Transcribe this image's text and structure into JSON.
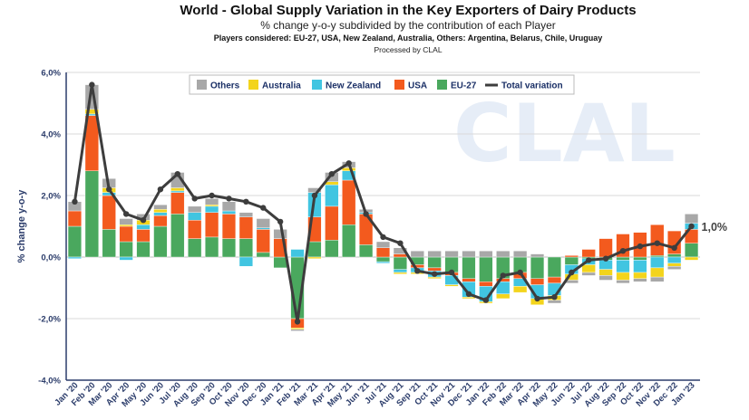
{
  "title": "World - Global Supply Variation in the Key Exporters of Dairy Products",
  "subtitle": "% change y-o-y subdivided by the contribution of each Player",
  "players": "Players considered: EU-27, USA, New Zealand, Australia, Others: Argentina, Belarus, Chile, Uruguay",
  "processed": "Processed by CLAL",
  "watermark": "CLAL",
  "chart_data": {
    "type": "bar",
    "stacked": true,
    "ylabel": "% change y-o-y",
    "ylim": [
      -4,
      6
    ],
    "yticks": [
      "-4,0%",
      "-2,0%",
      "0,0%",
      "2,0%",
      "4,0%",
      "6,0%"
    ],
    "yticks_values": [
      -4,
      -2,
      0,
      2,
      4,
      6
    ],
    "grid": "horizontal",
    "legend_position": "top",
    "end_label": "1,0%",
    "categories": [
      "Jan '20",
      "Feb '20",
      "Mar '20",
      "Apr '20",
      "May '20",
      "Jun '20",
      "Jul '20",
      "Aug '20",
      "Sep '20",
      "Oct '20",
      "Nov '20",
      "Dec '20",
      "Jan '21",
      "Feb '21",
      "Mar '21",
      "Apr '21",
      "May '21",
      "Jun '21",
      "Jul '21",
      "Aug '21",
      "Sep '21",
      "Oct '21",
      "Nov '21",
      "Dec '21",
      "Jan '22",
      "Feb '22",
      "Mar '22",
      "Apr '22",
      "May '22",
      "Jun '22",
      "Jul '22",
      "Aug '22",
      "Sep '22",
      "Oct '22",
      "Nov '22",
      "Dec '22",
      "Jan '23"
    ],
    "series": [
      {
        "name": "Others",
        "color": "#a8a8a8",
        "values": [
          0.3,
          0.8,
          0.3,
          0.2,
          0.2,
          0.15,
          0.5,
          0.2,
          0.2,
          0.3,
          0.15,
          0.3,
          0.3,
          -0.05,
          0.15,
          0.3,
          0.2,
          0.1,
          0.2,
          0.2,
          0.2,
          0.2,
          0.2,
          0.2,
          0.2,
          0.2,
          0.2,
          0.1,
          -0.1,
          -0.1,
          -0.1,
          -0.15,
          -0.1,
          -0.1,
          -0.15,
          -0.1,
          0.3
        ]
      },
      {
        "name": "Australia",
        "color": "#f3d41c",
        "values": [
          0.0,
          0.15,
          0.15,
          0.05,
          0.15,
          0.1,
          0.1,
          0.0,
          0.05,
          0.0,
          0.0,
          0.0,
          0.0,
          -0.05,
          -0.05,
          0.1,
          0.1,
          0.0,
          0.0,
          -0.05,
          -0.05,
          -0.05,
          -0.05,
          -0.05,
          -0.05,
          -0.15,
          -0.2,
          -0.2,
          -0.15,
          -0.2,
          -0.25,
          -0.2,
          -0.25,
          -0.2,
          -0.3,
          -0.1,
          -0.1
        ]
      },
      {
        "name": "New Zealand",
        "color": "#41c5e1",
        "values": [
          -0.05,
          0.05,
          0.1,
          -0.1,
          0.15,
          0.1,
          0.05,
          0.25,
          0.2,
          0.1,
          -0.3,
          0.05,
          0.0,
          0.25,
          0.8,
          0.7,
          0.3,
          0.05,
          -0.05,
          -0.1,
          -0.15,
          -0.2,
          -0.3,
          -0.5,
          -0.5,
          -0.4,
          -0.25,
          -0.45,
          -0.4,
          -0.3,
          -0.2,
          -0.3,
          -0.4,
          -0.4,
          -0.35,
          -0.2,
          0.2
        ]
      },
      {
        "name": "USA",
        "color": "#f35a1e",
        "values": [
          0.5,
          1.8,
          1.1,
          0.5,
          0.4,
          0.35,
          0.7,
          0.6,
          0.8,
          0.8,
          0.7,
          0.75,
          0.6,
          -0.3,
          0.8,
          1.1,
          1.45,
          1.0,
          0.3,
          0.1,
          -0.1,
          -0.1,
          -0.1,
          -0.1,
          -0.15,
          -0.1,
          -0.2,
          -0.2,
          -0.2,
          0.05,
          0.25,
          0.6,
          0.75,
          0.8,
          1.0,
          0.75,
          0.45
        ]
      },
      {
        "name": "EU-27",
        "color": "#4aa85e",
        "values": [
          1.0,
          2.8,
          0.9,
          0.5,
          0.5,
          1.0,
          1.4,
          0.6,
          0.65,
          0.6,
          0.6,
          0.15,
          -0.35,
          -2.0,
          0.5,
          0.55,
          1.05,
          0.4,
          -0.15,
          -0.4,
          -0.25,
          -0.35,
          -0.5,
          -0.7,
          -0.8,
          -0.7,
          -0.5,
          -0.7,
          -0.65,
          -0.25,
          -0.05,
          -0.1,
          -0.1,
          -0.1,
          0.05,
          0.1,
          0.45
        ]
      },
      {
        "name": "Total variation",
        "color": "#3d3d3d",
        "type": "line",
        "values": [
          1.8,
          5.6,
          2.2,
          1.4,
          1.2,
          2.2,
          2.7,
          1.9,
          2.0,
          1.9,
          1.8,
          1.6,
          1.15,
          -2.1,
          2.0,
          2.7,
          3.05,
          1.4,
          0.65,
          0.45,
          -0.45,
          -0.55,
          -0.5,
          -1.2,
          -1.4,
          -0.6,
          -0.5,
          -1.35,
          -1.3,
          -0.5,
          -0.1,
          -0.05,
          0.2,
          0.35,
          0.45,
          0.3,
          1.0
        ]
      }
    ]
  }
}
